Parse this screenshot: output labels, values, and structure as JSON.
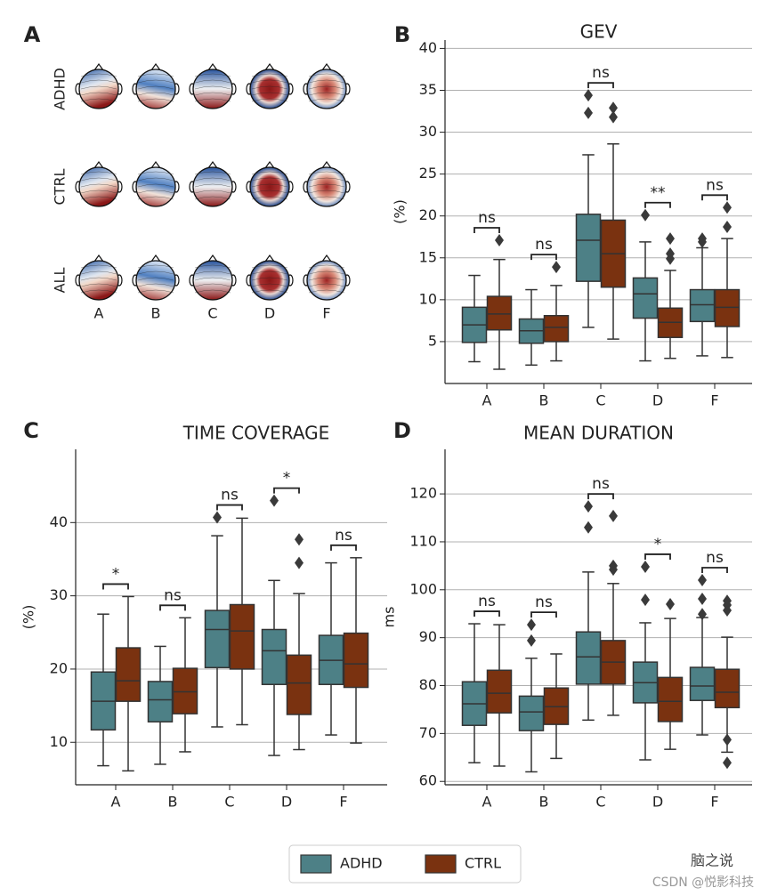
{
  "topomaps": {
    "panel_label": "A",
    "rows": [
      "ADHD",
      "CTRL",
      "ALL"
    ],
    "columns": [
      "A",
      "B",
      "C",
      "D",
      "F"
    ]
  },
  "chart_data": [
    {
      "type": "box",
      "panel_label": "B",
      "title": "GEV",
      "ylabel": "(%)",
      "categories": [
        "A",
        "B",
        "C",
        "D",
        "F"
      ],
      "ylim": [
        0,
        41
      ],
      "yticks": [
        5,
        10,
        15,
        20,
        25,
        30,
        35,
        40
      ],
      "grid": true,
      "annotations": [
        "ns",
        "ns",
        "ns",
        "**",
        "ns"
      ],
      "series": [
        {
          "name": "ADHD",
          "color": "#4d8086",
          "values": [
            {
              "whislo": 2.6,
              "q1": 4.9,
              "med": 7.0,
              "q3": 9.1,
              "whishi": 12.9,
              "fliers": []
            },
            {
              "whislo": 2.2,
              "q1": 4.8,
              "med": 6.3,
              "q3": 7.7,
              "whishi": 11.2,
              "fliers": []
            },
            {
              "whislo": 6.7,
              "q1": 12.2,
              "med": 17.1,
              "q3": 20.2,
              "whishi": 27.3,
              "fliers": [
                34.4,
                32.3
              ]
            },
            {
              "whislo": 2.7,
              "q1": 7.8,
              "med": 10.7,
              "q3": 12.6,
              "whishi": 16.9,
              "fliers": [
                20.1
              ]
            },
            {
              "whislo": 3.3,
              "q1": 7.4,
              "med": 9.4,
              "q3": 11.2,
              "whishi": 16.2,
              "fliers": [
                17.3,
                16.9
              ]
            }
          ]
        },
        {
          "name": "CTRL",
          "color": "#7a3210",
          "values": [
            {
              "whislo": 1.7,
              "q1": 6.4,
              "med": 8.3,
              "q3": 10.4,
              "whishi": 14.8,
              "fliers": [
                17.1
              ]
            },
            {
              "whislo": 2.7,
              "q1": 5.0,
              "med": 6.7,
              "q3": 8.1,
              "whishi": 11.7,
              "fliers": [
                13.9
              ]
            },
            {
              "whislo": 5.3,
              "q1": 11.5,
              "med": 15.5,
              "q3": 19.5,
              "whishi": 28.6,
              "fliers": [
                32.9,
                31.8
              ]
            },
            {
              "whislo": 3.0,
              "q1": 5.5,
              "med": 7.3,
              "q3": 9.0,
              "whishi": 13.5,
              "fliers": [
                17.3,
                15.5,
                14.9
              ]
            },
            {
              "whislo": 3.1,
              "q1": 6.8,
              "med": 9.1,
              "q3": 11.2,
              "whishi": 17.3,
              "fliers": [
                18.7,
                21.0
              ]
            }
          ]
        }
      ]
    },
    {
      "type": "box",
      "panel_label": "C",
      "title": "TIME COVERAGE",
      "ylabel": "(%)",
      "categories": [
        "A",
        "B",
        "C",
        "D",
        "F"
      ],
      "ylim": [
        4.2,
        50
      ],
      "yticks": [
        10,
        20,
        30,
        40
      ],
      "grid": true,
      "annotations": [
        "*",
        "ns",
        "ns",
        "*",
        "ns"
      ],
      "series": [
        {
          "name": "ADHD",
          "color": "#4d8086",
          "values": [
            {
              "whislo": 6.8,
              "q1": 11.7,
              "med": 15.6,
              "q3": 19.6,
              "whishi": 27.5,
              "fliers": []
            },
            {
              "whislo": 7.0,
              "q1": 12.8,
              "med": 15.8,
              "q3": 18.3,
              "whishi": 23.1,
              "fliers": []
            },
            {
              "whislo": 12.1,
              "q1": 20.2,
              "med": 25.4,
              "q3": 28.0,
              "whishi": 38.2,
              "fliers": [
                40.7
              ]
            },
            {
              "whislo": 8.2,
              "q1": 17.9,
              "med": 22.5,
              "q3": 25.4,
              "whishi": 32.1,
              "fliers": [
                43.0
              ]
            },
            {
              "whislo": 11.0,
              "q1": 17.9,
              "med": 21.2,
              "q3": 24.6,
              "whishi": 34.5,
              "fliers": []
            }
          ]
        },
        {
          "name": "CTRL",
          "color": "#7a3210",
          "values": [
            {
              "whislo": 6.1,
              "q1": 15.6,
              "med": 18.4,
              "q3": 22.9,
              "whishi": 29.9,
              "fliers": []
            },
            {
              "whislo": 8.7,
              "q1": 13.9,
              "med": 16.9,
              "q3": 20.1,
              "whishi": 27.0,
              "fliers": []
            },
            {
              "whislo": 12.4,
              "q1": 20.0,
              "med": 25.2,
              "q3": 28.8,
              "whishi": 40.6,
              "fliers": []
            },
            {
              "whislo": 9.0,
              "q1": 13.8,
              "med": 18.1,
              "q3": 21.9,
              "whishi": 30.3,
              "fliers": [
                37.7,
                34.5
              ]
            },
            {
              "whislo": 9.9,
              "q1": 17.5,
              "med": 20.7,
              "q3": 24.9,
              "whishi": 35.2,
              "fliers": []
            }
          ]
        }
      ]
    },
    {
      "type": "box",
      "panel_label": "D",
      "title": "MEAN DURATION",
      "ylabel": "ms",
      "categories": [
        "A",
        "B",
        "C",
        "D",
        "F"
      ],
      "ylim": [
        59.3,
        129.3
      ],
      "yticks": [
        60,
        70,
        80,
        90,
        100,
        110,
        120
      ],
      "grid": true,
      "annotations": [
        "ns",
        "ns",
        "ns",
        "*",
        "ns"
      ],
      "series": [
        {
          "name": "ADHD",
          "color": "#4d8086",
          "values": [
            {
              "whislo": 63.9,
              "q1": 71.7,
              "med": 76.2,
              "q3": 80.8,
              "whishi": 92.9,
              "fliers": []
            },
            {
              "whislo": 62.0,
              "q1": 70.6,
              "med": 74.5,
              "q3": 77.8,
              "whishi": 85.7,
              "fliers": [
                89.4,
                92.7
              ]
            },
            {
              "whislo": 72.8,
              "q1": 80.3,
              "med": 86.0,
              "q3": 91.2,
              "whishi": 103.7,
              "fliers": [
                113.0,
                117.4
              ]
            },
            {
              "whislo": 64.5,
              "q1": 76.4,
              "med": 80.6,
              "q3": 84.9,
              "whishi": 93.1,
              "fliers": [
                97.9,
                104.8
              ]
            },
            {
              "whislo": 69.7,
              "q1": 76.9,
              "med": 79.9,
              "q3": 83.8,
              "whishi": 94.2,
              "fliers": [
                102.0,
                98.1,
                94.9
              ]
            }
          ]
        },
        {
          "name": "CTRL",
          "color": "#7a3210",
          "values": [
            {
              "whislo": 63.2,
              "q1": 74.3,
              "med": 78.4,
              "q3": 83.2,
              "whishi": 92.7,
              "fliers": []
            },
            {
              "whislo": 64.8,
              "q1": 71.9,
              "med": 75.6,
              "q3": 79.5,
              "whishi": 86.6,
              "fliers": []
            },
            {
              "whislo": 73.8,
              "q1": 80.3,
              "med": 84.9,
              "q3": 89.4,
              "whishi": 101.3,
              "fliers": [
                115.4,
                105.0,
                104.2
              ]
            },
            {
              "whislo": 66.7,
              "q1": 72.5,
              "med": 76.7,
              "q3": 81.7,
              "whishi": 94.0,
              "fliers": [
                97.0
              ]
            },
            {
              "whislo": 66.1,
              "q1": 75.4,
              "med": 78.6,
              "q3": 83.4,
              "whishi": 90.1,
              "fliers": [
                97.7,
                96.8,
                95.7,
                63.9,
                68.7
              ]
            }
          ]
        }
      ]
    }
  ],
  "watermark": [
    "脑之说",
    "CSDN @悦影科技"
  ]
}
